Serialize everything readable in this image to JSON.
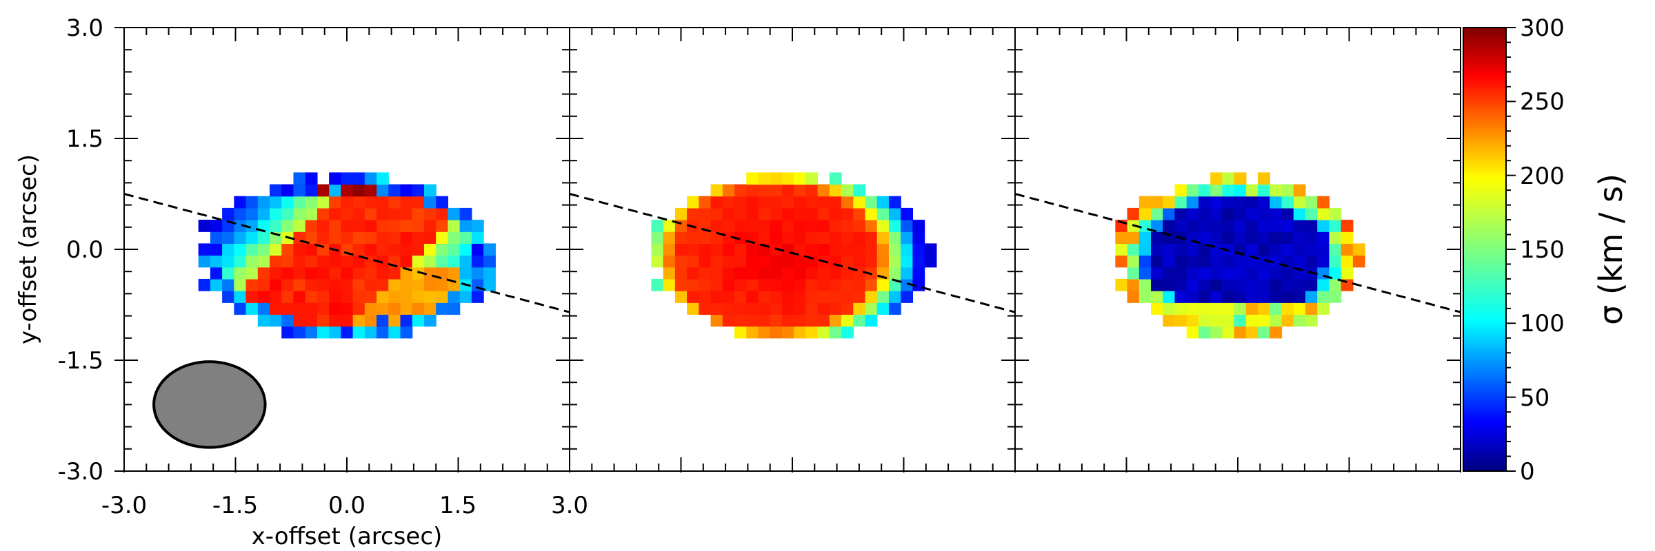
{
  "chart_data": {
    "type": "heatmap",
    "panels": [
      {
        "x_ticks": [
          "-3.0",
          "-1.5",
          "0.0",
          "1.5",
          "3.0"
        ],
        "y_ticks": [
          "3.0",
          "1.5",
          "0.0",
          "-1.5",
          "-3.0"
        ],
        "xlabel": "x-offset (arcsec)",
        "ylabel": "y-offset (arcsec)",
        "xlim": [
          -3.0,
          3.0
        ],
        "ylim": [
          -3.0,
          3.0
        ],
        "pattern": "twisted",
        "map_center": [
          0.0,
          -0.1
        ],
        "map_semi_axes": [
          2.0,
          1.1
        ],
        "beam": {
          "center": [
            -1.85,
            -2.1
          ],
          "semi_axes": [
            0.75,
            0.58
          ],
          "color": "#808080"
        },
        "pa_line": {
          "from": [
            -3.0,
            0.75
          ],
          "to": [
            3.0,
            -0.85
          ]
        }
      },
      {
        "x_ticks": [
          "3.0"
        ],
        "xlim": [
          -3.0,
          3.0
        ],
        "ylim": [
          -3.0,
          3.0
        ],
        "pattern": "disk",
        "map_center": [
          0.0,
          -0.1
        ],
        "map_semi_axes": [
          1.9,
          1.1
        ],
        "pa_line": {
          "from": [
            -3.0,
            0.75
          ],
          "to": [
            3.0,
            -0.85
          ]
        }
      },
      {
        "xlim": [
          -3.0,
          3.0
        ],
        "ylim": [
          -3.0,
          3.0
        ],
        "pattern": "residual",
        "map_center": [
          0.0,
          -0.1
        ],
        "map_semi_axes": [
          1.65,
          1.1
        ],
        "pa_line": {
          "from": [
            -3.0,
            0.75
          ],
          "to": [
            3.0,
            -0.85
          ]
        }
      }
    ],
    "colorbar": {
      "label": "σ (km / s)",
      "ticks": [
        "0",
        "50",
        "100",
        "150",
        "200",
        "250",
        "300"
      ],
      "range": [
        0,
        300
      ],
      "colormap": "jet"
    }
  }
}
